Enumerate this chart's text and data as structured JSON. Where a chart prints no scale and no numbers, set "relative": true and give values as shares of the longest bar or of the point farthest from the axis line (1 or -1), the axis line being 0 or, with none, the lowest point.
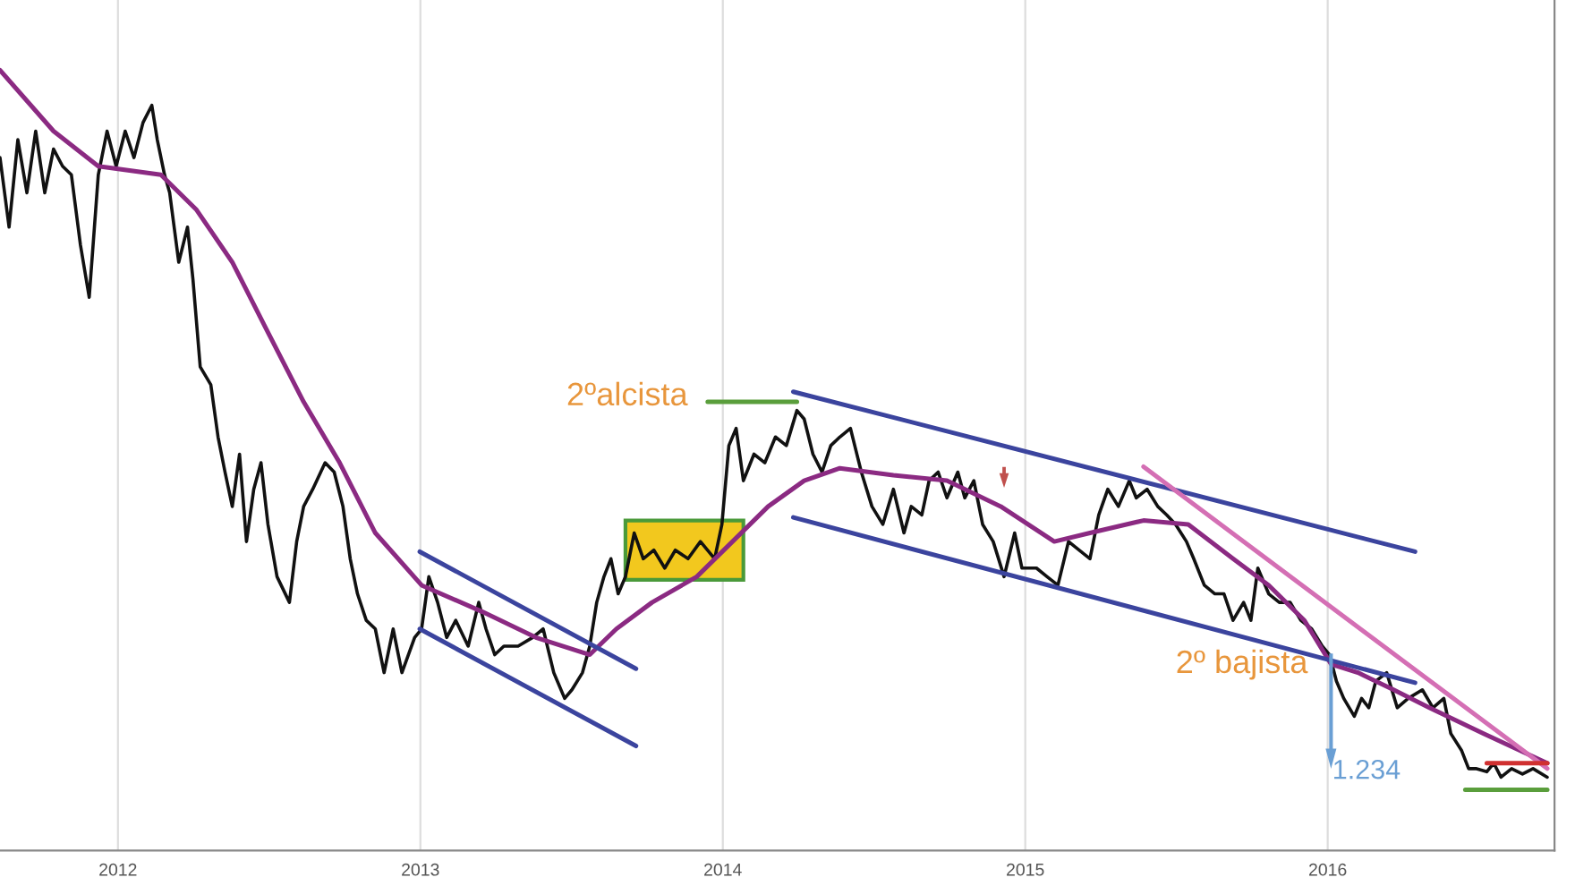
{
  "chart_data": {
    "type": "line",
    "relative": true,
    "grid": "x",
    "legend": false,
    "tick_labels": "x",
    "marker": "none",
    "xlim": [
      2011.61,
      2016.75
    ],
    "xticks": [
      2012,
      2013,
      2014,
      2015,
      2016
    ],
    "series": [
      {
        "color": "#111111",
        "x": [
          2011.61,
          2011.64,
          2011.669,
          2011.699,
          2011.728,
          2011.758,
          2011.787,
          2011.817,
          2011.846,
          2011.876,
          2011.905,
          2011.935,
          2011.964,
          2011.994,
          2012.024,
          2012.053,
          2012.083,
          2012.112,
          2012.13,
          2012.154,
          2012.171,
          2012.201,
          2012.23,
          2012.248,
          2012.272,
          2012.307,
          2012.331,
          2012.354,
          2012.378,
          2012.402,
          2012.425,
          2012.449,
          2012.473,
          2012.496,
          2012.526,
          2012.567,
          2012.591,
          2012.614,
          2012.644,
          2012.685,
          2012.715,
          2012.744,
          2012.768,
          2012.792,
          2012.821,
          2012.851,
          2012.88,
          2012.91,
          2012.939,
          2012.981,
          2013.004,
          2013.028,
          2013.057,
          2013.087,
          2013.117,
          2013.158,
          2013.193,
          2013.217,
          2013.246,
          2013.276,
          2013.323,
          2013.371,
          2013.406,
          2013.441,
          2013.477,
          2013.501,
          2013.536,
          2013.56,
          2013.583,
          2013.607,
          2013.63,
          2013.654,
          2013.678,
          2013.707,
          2013.737,
          2013.772,
          2013.808,
          2013.843,
          2013.885,
          2013.926,
          2013.973,
          2013.997,
          2014.02,
          2014.044,
          2014.068,
          2014.103,
          2014.139,
          2014.174,
          2014.21,
          2014.245,
          2014.269,
          2014.298,
          2014.328,
          2014.357,
          2014.387,
          2014.422,
          2014.458,
          2014.493,
          2014.529,
          2014.564,
          2014.599,
          2014.623,
          2014.658,
          2014.682,
          2014.712,
          2014.741,
          2014.777,
          2014.8,
          2014.83,
          2014.859,
          2014.894,
          2014.93,
          2014.965,
          2014.989,
          2015.037,
          2015.072,
          2015.108,
          2015.143,
          2015.178,
          2015.214,
          2015.243,
          2015.273,
          2015.308,
          2015.344,
          2015.367,
          2015.403,
          2015.438,
          2015.468,
          2015.497,
          2015.533,
          2015.557,
          2015.592,
          2015.627,
          2015.657,
          2015.687,
          2015.722,
          2015.746,
          2015.769,
          2015.805,
          2015.84,
          2015.876,
          2015.911,
          2015.947,
          2015.982,
          2016.006,
          2016.029,
          2016.053,
          2016.088,
          2016.112,
          2016.136,
          2016.159,
          2016.195,
          2016.23,
          2016.266,
          2016.313,
          2016.348,
          2016.384,
          2016.407,
          2016.443,
          2016.466,
          2016.49,
          2016.526,
          2016.549,
          2016.573,
          2016.608,
          2016.644,
          2016.679,
          2016.726
        ],
        "values": [
          0.888,
          0.799,
          0.911,
          0.843,
          0.922,
          0.843,
          0.899,
          0.877,
          0.866,
          0.776,
          0.709,
          0.866,
          0.922,
          0.877,
          0.922,
          0.888,
          0.933,
          0.955,
          0.911,
          0.866,
          0.843,
          0.754,
          0.799,
          0.732,
          0.62,
          0.597,
          0.53,
          0.485,
          0.441,
          0.508,
          0.396,
          0.463,
          0.497,
          0.418,
          0.351,
          0.318,
          0.396,
          0.441,
          0.463,
          0.497,
          0.485,
          0.441,
          0.374,
          0.329,
          0.295,
          0.284,
          0.228,
          0.284,
          0.228,
          0.273,
          0.284,
          0.351,
          0.318,
          0.273,
          0.295,
          0.262,
          0.318,
          0.284,
          0.251,
          0.262,
          0.262,
          0.273,
          0.284,
          0.228,
          0.195,
          0.206,
          0.228,
          0.262,
          0.318,
          0.351,
          0.374,
          0.329,
          0.351,
          0.407,
          0.374,
          0.385,
          0.362,
          0.385,
          0.374,
          0.396,
          0.374,
          0.418,
          0.519,
          0.541,
          0.474,
          0.508,
          0.497,
          0.53,
          0.519,
          0.564,
          0.553,
          0.508,
          0.485,
          0.519,
          0.53,
          0.541,
          0.485,
          0.441,
          0.418,
          0.463,
          0.407,
          0.441,
          0.43,
          0.474,
          0.485,
          0.452,
          0.485,
          0.452,
          0.474,
          0.418,
          0.396,
          0.351,
          0.407,
          0.362,
          0.362,
          0.351,
          0.34,
          0.396,
          0.385,
          0.374,
          0.43,
          0.463,
          0.441,
          0.474,
          0.452,
          0.463,
          0.441,
          0.43,
          0.418,
          0.396,
          0.374,
          0.34,
          0.329,
          0.329,
          0.295,
          0.318,
          0.295,
          0.362,
          0.329,
          0.318,
          0.318,
          0.295,
          0.284,
          0.262,
          0.251,
          0.217,
          0.195,
          0.172,
          0.195,
          0.183,
          0.217,
          0.228,
          0.183,
          0.195,
          0.206,
          0.183,
          0.195,
          0.15,
          0.128,
          0.105,
          0.105,
          0.101,
          0.112,
          0.094,
          0.105,
          0.098,
          0.105,
          0.094
        ]
      },
      {
        "color": "#8b2a82",
        "x": [
          2011.61,
          2011.787,
          2011.935,
          2012.142,
          2012.26,
          2012.378,
          2012.496,
          2012.614,
          2012.733,
          2012.851,
          2013.004,
          2013.205,
          2013.382,
          2013.56,
          2013.648,
          2013.766,
          2013.914,
          2014.032,
          2014.15,
          2014.269,
          2014.387,
          2014.564,
          2014.741,
          2014.919,
          2015.096,
          2015.214,
          2015.391,
          2015.539,
          2015.687,
          2015.805,
          2015.923,
          2016.011,
          2016.1,
          2016.218,
          2016.336,
          2016.514,
          2016.726
        ],
        "values": [
          1.0,
          0.922,
          0.877,
          0.866,
          0.821,
          0.754,
          0.664,
          0.575,
          0.497,
          0.407,
          0.34,
          0.306,
          0.273,
          0.251,
          0.284,
          0.318,
          0.351,
          0.396,
          0.441,
          0.474,
          0.49,
          0.481,
          0.474,
          0.441,
          0.396,
          0.407,
          0.423,
          0.418,
          0.374,
          0.34,
          0.295,
          0.239,
          0.228,
          0.206,
          0.183,
          0.15,
          0.112
        ]
      },
      {
        "color": "#3b449e",
        "x": [
          2012.998,
          2013.713
        ],
        "values": [
          0.383,
          0.233
        ]
      },
      {
        "color": "#3b449e",
        "x": [
          2012.998,
          2013.713
        ],
        "values": [
          0.284,
          0.134
        ]
      },
      {
        "color": "#3b449e",
        "x": [
          2014.233,
          2016.289
        ],
        "values": [
          0.588,
          0.383
        ]
      },
      {
        "color": "#3b449e",
        "x": [
          2014.233,
          2016.289
        ],
        "values": [
          0.427,
          0.215
        ]
      },
      {
        "color": "#d46fb4",
        "x": [
          2015.391,
          2016.726
        ],
        "values": [
          0.492,
          0.105
        ]
      },
      {
        "color": "#5a9e3c",
        "x": [
          2013.95,
          2014.245
        ],
        "values": [
          0.575,
          0.575
        ]
      },
      {
        "color": "#5a9e3c",
        "x": [
          2016.455,
          2016.726
        ],
        "values": [
          0.078,
          0.078
        ]
      },
      {
        "color": "#d03030",
        "x": [
          2016.526,
          2016.726
        ],
        "values": [
          0.112,
          0.112
        ]
      }
    ],
    "annotations": [
      {
        "text": "2ºalcista",
        "x": 2013.95,
        "y": 0.575
      },
      {
        "text": "2º bajista",
        "x": 2016.0,
        "y": 0.251
      },
      "1.234"
    ]
  }
}
